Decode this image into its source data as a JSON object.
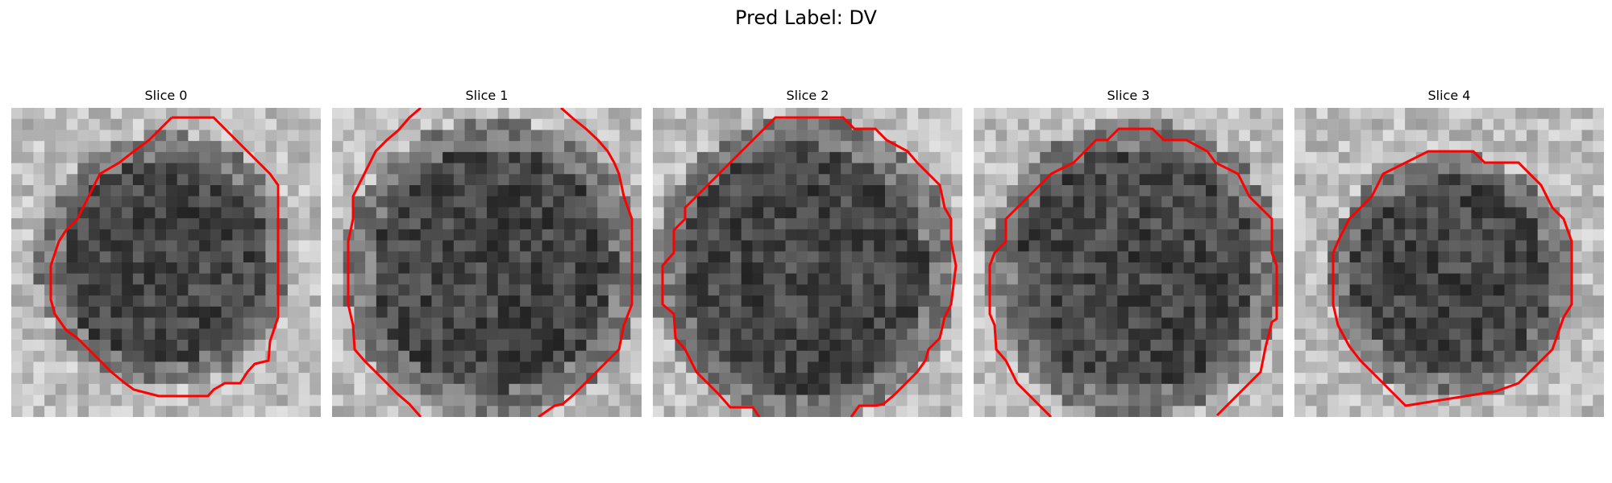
{
  "title": "Pred Label: DV",
  "colors": {
    "contour": "#ff0000",
    "background": "#ffffff"
  },
  "panels": [
    {
      "title": "Slice 0"
    },
    {
      "title": "Slice 1"
    },
    {
      "title": "Slice 2"
    },
    {
      "title": "Slice 3"
    },
    {
      "title": "Slice 4"
    }
  ]
}
